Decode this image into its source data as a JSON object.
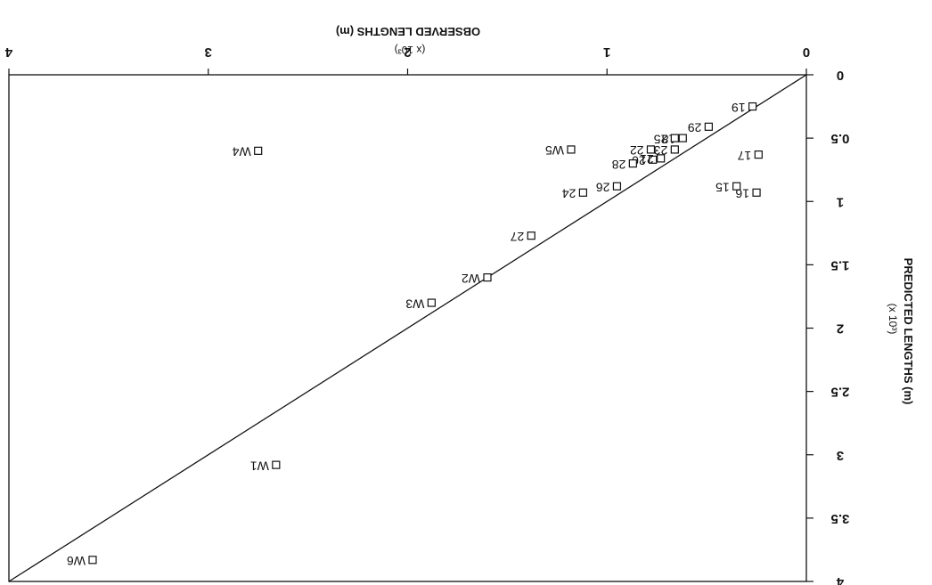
{
  "chart_data": {
    "type": "scatter",
    "orientation": "rotated-180",
    "x_axis": {
      "title": "OBSERVED LENGTHS  (m)",
      "multiplier": "(x 10³)",
      "range": [
        0,
        4
      ],
      "tick_labels": [
        "0",
        "1",
        "2",
        "3",
        "4"
      ]
    },
    "y_axis": {
      "title": "PREDICTED LENGTHS  (m)",
      "multiplier": "(x 10³)",
      "range": [
        0,
        4
      ],
      "tick_labels": [
        "0",
        "0.5",
        "1",
        "1.5",
        "2",
        "2.5",
        "3",
        "3.5",
        "4"
      ]
    },
    "reference_line": {
      "type": "y=x",
      "from": [
        0,
        0
      ],
      "to": [
        4,
        4
      ]
    },
    "series": [
      {
        "points": [
          {
            "label": "19",
            "x": 0.27,
            "y": 0.25
          },
          {
            "label": "29",
            "x": 0.49,
            "y": 0.41
          },
          {
            "label": "18",
            "x": 0.62,
            "y": 0.5
          },
          {
            "label": "25",
            "x": 0.66,
            "y": 0.5
          },
          {
            "label": "23",
            "x": 0.66,
            "y": 0.59
          },
          {
            "label": "22",
            "x": 0.78,
            "y": 0.59
          },
          {
            "label": "20",
            "x": 0.77,
            "y": 0.67
          },
          {
            "label": "21",
            "x": 0.73,
            "y": 0.66
          },
          {
            "label": "28",
            "x": 0.87,
            "y": 0.7
          },
          {
            "label": "26",
            "x": 0.95,
            "y": 0.88
          },
          {
            "label": "24",
            "x": 1.12,
            "y": 0.93
          },
          {
            "label": "17",
            "x": 0.24,
            "y": 0.63
          },
          {
            "label": "15",
            "x": 0.35,
            "y": 0.88
          },
          {
            "label": "16",
            "x": 0.25,
            "y": 0.93
          },
          {
            "label": "27",
            "x": 1.38,
            "y": 1.27
          },
          {
            "label": "W1",
            "x": 2.66,
            "y": 3.08
          },
          {
            "label": "W2",
            "x": 1.6,
            "y": 1.6
          },
          {
            "label": "W3",
            "x": 1.88,
            "y": 1.8
          },
          {
            "label": "W4",
            "x": 2.75,
            "y": 0.6
          },
          {
            "label": "W5",
            "x": 1.18,
            "y": 0.59
          },
          {
            "label": "W6",
            "x": 3.58,
            "y": 3.83
          }
        ]
      }
    ]
  }
}
